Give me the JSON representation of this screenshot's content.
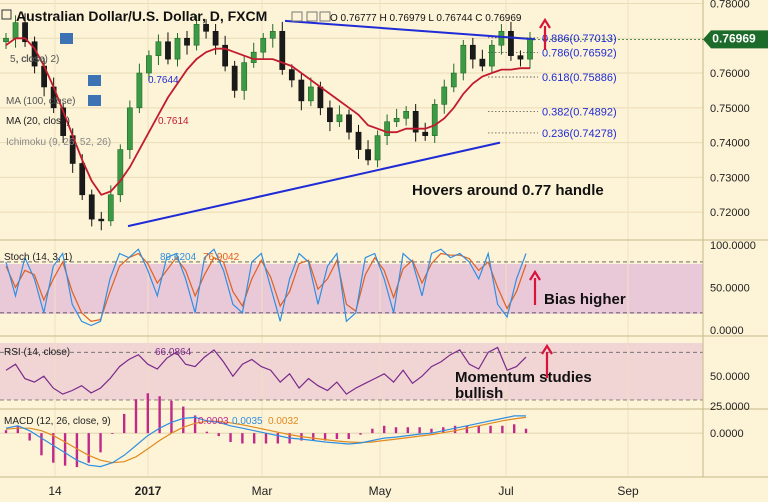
{
  "header": {
    "title": "Australian Dollar/U.S. Dollar, D, FXCM",
    "ohlc": "O 0.76777  H 0.76979  L 0.76744  C 0.76969",
    "indicators": [
      {
        "label": "5, close)",
        "value": ""
      },
      {
        "label": ", close, 2)",
        "value": ""
      },
      {
        "label": "",
        "value": "0.7644"
      },
      {
        "label": "MA (100, close)",
        "value": ""
      },
      {
        "label": "MA (20, close)",
        "value": "0.7614"
      },
      {
        "label": "Ichimoku (9, 26, 52, 26)",
        "value": ""
      }
    ]
  },
  "colors": {
    "background": "#fdf3d6",
    "price_up": "#1f6b2a",
    "price_down": "#111111",
    "ma20": "#c21b2e",
    "trendline": "#1f2bd6",
    "stoch_band": "#e9c8d8",
    "rsi_band": "#f1d4d4",
    "stoch_k": "#2f8fe0",
    "stoch_d": "#e06020",
    "rsi": "#7a2a8a",
    "macd": "#2f8fe0",
    "signal": "#e08a20",
    "hist": "#c0288a",
    "annotation_arrow": "#d8143a",
    "price_tag": "#1c6b2a"
  },
  "annotations": {
    "main": "Hovers around 0.77 handle",
    "stoch": "Bias higher",
    "rsi_line1": "Momentum studies",
    "rsi_line2": "bullish"
  },
  "chart_data": [
    {
      "type": "line",
      "title": "Australian Dollar/U.S. Dollar, D, FXCM",
      "x_ticks": [
        "14",
        "2017",
        "Mar",
        "May",
        "Jul",
        "Sep"
      ],
      "ylim": [
        0.712,
        0.781
      ],
      "y_ticks": [
        0.72,
        0.73,
        0.74,
        0.75,
        0.76,
        0.77,
        0.78
      ],
      "last_price": "0.76969",
      "fibonacci": [
        {
          "label": "0.886(0.77013)",
          "value": 0.77013
        },
        {
          "label": "0.786(0.76592)",
          "value": 0.76592
        },
        {
          "label": "0.618(0.75886)",
          "value": 0.75886
        },
        {
          "label": "0.382(0.74892)",
          "value": 0.74892
        },
        {
          "label": "0.236(0.74278)",
          "value": 0.74278
        }
      ],
      "series": [
        {
          "name": "AUD/USD",
          "values": [
            0.77,
            0.7745,
            0.769,
            0.762,
            0.756,
            0.75,
            0.742,
            0.734,
            0.725,
            0.718,
            0.7175,
            0.725,
            0.738,
            0.75,
            0.76,
            0.765,
            0.769,
            0.764,
            0.77,
            0.768,
            0.774,
            0.772,
            0.768,
            0.762,
            0.755,
            0.763,
            0.766,
            0.77,
            0.772,
            0.761,
            0.758,
            0.752,
            0.756,
            0.75,
            0.746,
            0.748,
            0.743,
            0.738,
            0.735,
            0.742,
            0.746,
            0.747,
            0.749,
            0.743,
            0.742,
            0.751,
            0.756,
            0.76,
            0.768,
            0.764,
            0.762,
            0.768,
            0.772,
            0.765,
            0.764,
            0.7697
          ]
        },
        {
          "name": "MA (20, close)",
          "values": [
            0.768,
            0.77,
            0.77,
            0.767,
            0.762,
            0.756,
            0.749,
            0.742,
            0.735,
            0.729,
            0.725,
            0.726,
            0.729,
            0.733,
            0.738,
            0.743,
            0.748,
            0.753,
            0.757,
            0.761,
            0.764,
            0.766,
            0.767,
            0.767,
            0.766,
            0.765,
            0.764,
            0.764,
            0.764,
            0.763,
            0.762,
            0.76,
            0.758,
            0.756,
            0.754,
            0.752,
            0.75,
            0.748,
            0.745,
            0.744,
            0.743,
            0.743,
            0.744,
            0.744,
            0.744,
            0.745,
            0.747,
            0.75,
            0.754,
            0.757,
            0.759,
            0.76,
            0.761,
            0.761,
            0.7614,
            0.7614
          ]
        }
      ],
      "trendlines": [
        {
          "from": 0.716,
          "to": 0.74
        },
        {
          "from": 0.775,
          "to": 0.7697
        }
      ]
    },
    {
      "type": "line",
      "title": "Stoch (14, 3, 1)",
      "ylim": [
        -5,
        100
      ],
      "y_ticks": [
        "100.0000",
        "50.0000",
        "0.0000"
      ],
      "levels": [
        80,
        20
      ],
      "readout": [
        "89.6204",
        "76.9042"
      ],
      "series": [
        {
          "name": "%K",
          "values": [
            80,
            40,
            85,
            60,
            20,
            75,
            90,
            30,
            10,
            5,
            10,
            60,
            90,
            85,
            95,
            70,
            40,
            85,
            90,
            60,
            20,
            85,
            95,
            70,
            30,
            20,
            80,
            90,
            50,
            10,
            60,
            90,
            80,
            30,
            75,
            90,
            10,
            20,
            85,
            90,
            60,
            20,
            90,
            80,
            40,
            90,
            95,
            85,
            90,
            80,
            60,
            90,
            30,
            15,
            60,
            90
          ]
        },
        {
          "name": "%D",
          "values": [
            75,
            50,
            70,
            65,
            35,
            60,
            80,
            45,
            20,
            10,
            12,
            45,
            75,
            85,
            90,
            78,
            55,
            70,
            85,
            70,
            40,
            65,
            85,
            80,
            45,
            28,
            60,
            82,
            62,
            28,
            45,
            78,
            82,
            48,
            60,
            82,
            30,
            22,
            65,
            85,
            70,
            38,
            72,
            82,
            55,
            78,
            90,
            88,
            88,
            84,
            70,
            80,
            50,
            25,
            45,
            77
          ]
        }
      ]
    },
    {
      "type": "line",
      "title": "RSI (14, close)",
      "ylim": [
        25,
        82
      ],
      "y_ticks": [
        "50.0000",
        "25.0000"
      ],
      "readout": "66.0864",
      "series": [
        {
          "name": "RSI",
          "values": [
            55,
            60,
            48,
            45,
            50,
            40,
            35,
            38,
            42,
            36,
            40,
            48,
            58,
            64,
            68,
            60,
            56,
            65,
            70,
            60,
            58,
            66,
            72,
            62,
            50,
            60,
            64,
            58,
            55,
            45,
            52,
            40,
            48,
            42,
            38,
            45,
            35,
            40,
            44,
            48,
            52,
            45,
            55,
            44,
            50,
            58,
            62,
            68,
            72,
            60,
            56,
            70,
            74,
            55,
            58,
            66
          ]
        }
      ]
    },
    {
      "type": "line",
      "title": "MACD (12, 26, close, 9)",
      "ylim": [
        -0.0085,
        0.0045
      ],
      "y_ticks": [
        "0.0000"
      ],
      "readout": [
        "0.0003",
        "0.0035",
        "0.0032"
      ],
      "series": [
        {
          "name": "MACD",
          "values": [
            0.001,
            0.0015,
            0.0005,
            -0.001,
            -0.0025,
            -0.004,
            -0.0055,
            -0.0065,
            -0.0068,
            -0.006,
            -0.0045,
            -0.0025,
            -0.0005,
            0.001,
            0.0022,
            0.003,
            0.0032,
            0.0025,
            0.0022,
            0.0015,
            0.001,
            0.0005,
            0.0,
            -0.0005,
            -0.001,
            -0.0012,
            -0.0015,
            -0.0018,
            -0.002,
            -0.0022,
            -0.002,
            -0.0015,
            -0.001,
            -0.0008,
            -0.0005,
            -0.0002,
            0.0,
            0.0005,
            0.001,
            0.0015,
            0.002,
            0.0025,
            0.003,
            0.0035,
            0.0035
          ]
        },
        {
          "name": "Signal",
          "values": [
            0.0008,
            0.001,
            0.001,
            0.0005,
            -0.0005,
            -0.0018,
            -0.0032,
            -0.0045,
            -0.0055,
            -0.006,
            -0.0058,
            -0.0048,
            -0.0032,
            -0.0015,
            0.0,
            0.0012,
            0.002,
            0.0024,
            0.0024,
            0.0021,
            0.0017,
            0.0012,
            0.0007,
            0.0002,
            -0.0003,
            -0.0007,
            -0.001,
            -0.0013,
            -0.0016,
            -0.0018,
            -0.0019,
            -0.0018,
            -0.0015,
            -0.0012,
            -0.0009,
            -0.0006,
            -0.0003,
            0.0001,
            0.0005,
            0.001,
            0.0015,
            0.002,
            0.0025,
            0.0029,
            0.0032
          ]
        }
      ]
    }
  ]
}
